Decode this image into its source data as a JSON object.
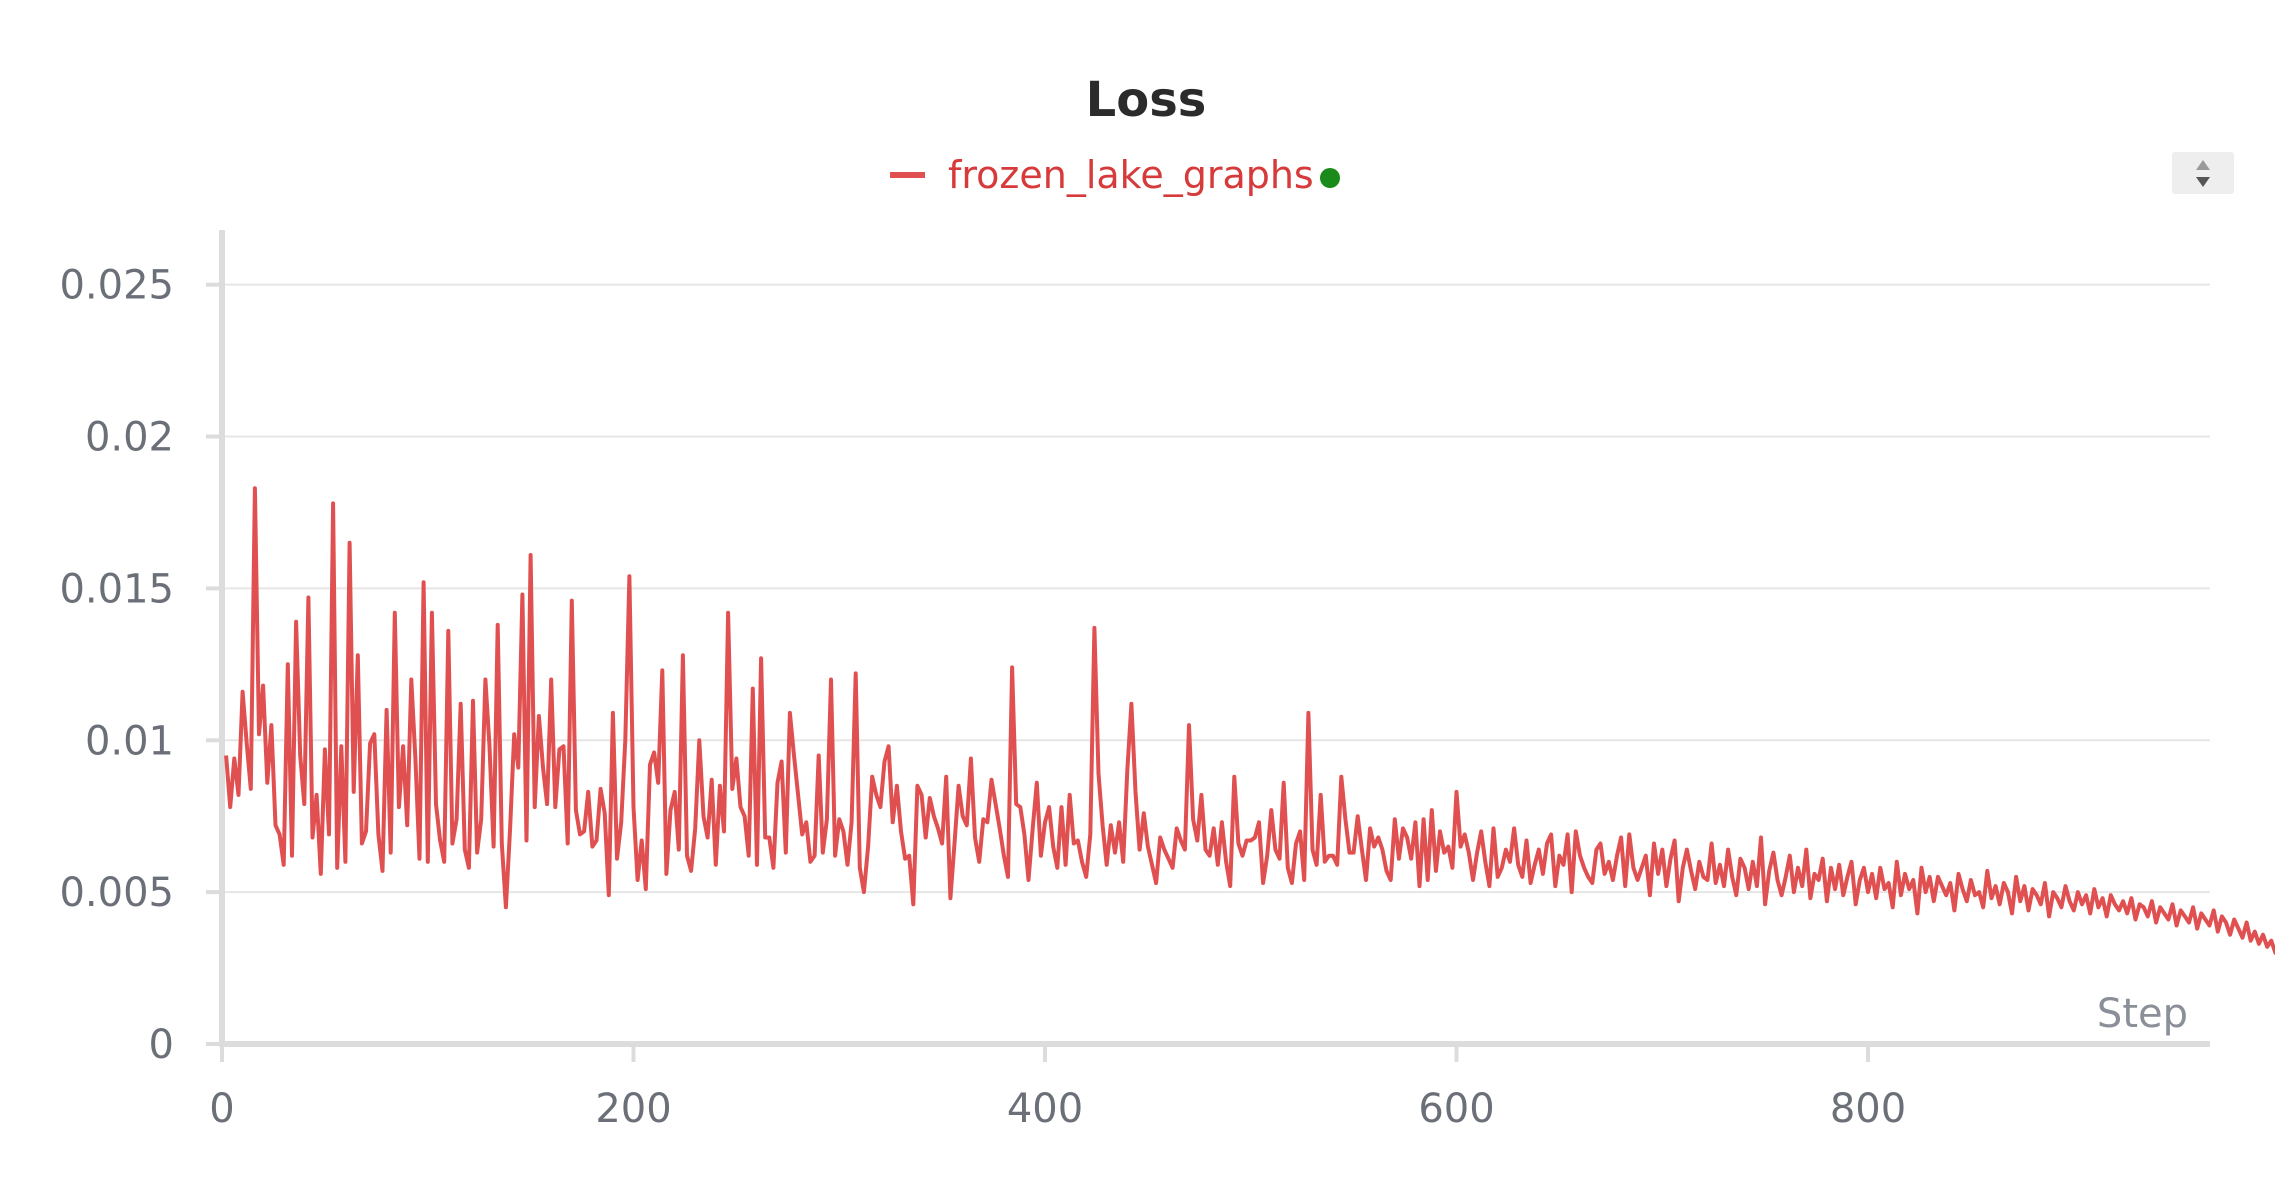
{
  "colors": {
    "series": "#e05050",
    "legend_text": "#d63a3a",
    "status_dot": "#1a8a1a",
    "grid": "#e6e6e6",
    "axis": "#dcdcdc",
    "tick_text": "#6b6f78"
  },
  "legend": {
    "status_icon": "status-dot-icon",
    "scroll_icon": "legend-scroll-icon"
  },
  "chart_data": {
    "type": "line",
    "title": "Loss",
    "xlabel": "Step",
    "ylabel": "",
    "grid": true,
    "legend_position": "top-center",
    "xlim": [
      0,
      975
    ],
    "ylim": [
      0,
      0.0268
    ],
    "x_ticks": [
      0,
      200,
      400,
      600,
      800
    ],
    "x_tick_labels": [
      "0",
      "200",
      "400",
      "600",
      "800"
    ],
    "y_ticks": [
      0,
      0.005,
      0.01,
      0.015,
      0.02,
      0.025
    ],
    "y_tick_labels": [
      "0",
      "0.005",
      "0.01",
      "0.015",
      "0.02",
      "0.025"
    ],
    "series": [
      {
        "name": "frozen_lake_graphs",
        "color": "#e05050",
        "x_start": 2,
        "x_step": 2,
        "values": [
          0.0095,
          0.0078,
          0.0094,
          0.0082,
          0.0116,
          0.0099,
          0.0084,
          0.0183,
          0.0102,
          0.0118,
          0.0086,
          0.0105,
          0.0072,
          0.0069,
          0.0059,
          0.0125,
          0.0062,
          0.0139,
          0.0095,
          0.0079,
          0.0147,
          0.0068,
          0.0082,
          0.0056,
          0.0097,
          0.0069,
          0.0178,
          0.0058,
          0.0098,
          0.006,
          0.0165,
          0.0083,
          0.0128,
          0.0066,
          0.007,
          0.0099,
          0.0102,
          0.0069,
          0.0057,
          0.011,
          0.0063,
          0.0142,
          0.0078,
          0.0098,
          0.0072,
          0.012,
          0.0094,
          0.0061,
          0.0152,
          0.006,
          0.0142,
          0.0079,
          0.0067,
          0.006,
          0.0136,
          0.0066,
          0.0074,
          0.0112,
          0.0064,
          0.0058,
          0.0113,
          0.0063,
          0.0074,
          0.012,
          0.0098,
          0.0065,
          0.0138,
          0.0066,
          0.0045,
          0.0071,
          0.0102,
          0.0091,
          0.0148,
          0.0067,
          0.0161,
          0.0078,
          0.0108,
          0.0091,
          0.0079,
          0.012,
          0.0078,
          0.0097,
          0.0098,
          0.0066,
          0.0146,
          0.0077,
          0.0069,
          0.007,
          0.0083,
          0.0065,
          0.0067,
          0.0084,
          0.0076,
          0.0049,
          0.0109,
          0.0061,
          0.0073,
          0.01,
          0.0154,
          0.0078,
          0.0054,
          0.0067,
          0.0051,
          0.0092,
          0.0096,
          0.0086,
          0.0123,
          0.0056,
          0.0077,
          0.0083,
          0.0064,
          0.0128,
          0.0062,
          0.0057,
          0.0071,
          0.01,
          0.0075,
          0.0068,
          0.0087,
          0.0059,
          0.0085,
          0.007,
          0.0142,
          0.0084,
          0.0094,
          0.0078,
          0.0075,
          0.0062,
          0.0117,
          0.0059,
          0.0127,
          0.0068,
          0.0068,
          0.0058,
          0.0086,
          0.0093,
          0.0063,
          0.0109,
          0.0095,
          0.0082,
          0.0069,
          0.0073,
          0.006,
          0.0062,
          0.0095,
          0.0063,
          0.0074,
          0.012,
          0.0062,
          0.0074,
          0.007,
          0.0059,
          0.0073,
          0.0122,
          0.0058,
          0.005,
          0.0065,
          0.0088,
          0.0082,
          0.0078,
          0.0093,
          0.0098,
          0.0073,
          0.0085,
          0.007,
          0.0061,
          0.0062,
          0.0046,
          0.0085,
          0.0082,
          0.0068,
          0.0081,
          0.0075,
          0.0071,
          0.0066,
          0.0088,
          0.0048,
          0.0066,
          0.0085,
          0.0075,
          0.0072,
          0.0094,
          0.0068,
          0.006,
          0.0074,
          0.0073,
          0.0087,
          0.0079,
          0.0071,
          0.0062,
          0.0055,
          0.0124,
          0.0079,
          0.0078,
          0.0069,
          0.0054,
          0.0071,
          0.0086,
          0.0062,
          0.0073,
          0.0078,
          0.0065,
          0.0058,
          0.0078,
          0.0059,
          0.0082,
          0.0066,
          0.0067,
          0.006,
          0.0055,
          0.0069,
          0.0137,
          0.0089,
          0.0072,
          0.0059,
          0.0072,
          0.0063,
          0.0073,
          0.006,
          0.009,
          0.0112,
          0.0083,
          0.0064,
          0.0076,
          0.0065,
          0.0059,
          0.0053,
          0.0068,
          0.0064,
          0.0061,
          0.0058,
          0.0071,
          0.0067,
          0.0064,
          0.0105,
          0.0074,
          0.0067,
          0.0082,
          0.0064,
          0.0062,
          0.0071,
          0.0059,
          0.0073,
          0.006,
          0.0052,
          0.0088,
          0.0066,
          0.0062,
          0.0067,
          0.0067,
          0.0068,
          0.0073,
          0.0053,
          0.0062,
          0.0077,
          0.0064,
          0.0061,
          0.0086,
          0.0058,
          0.0053,
          0.0066,
          0.007,
          0.0054,
          0.0109,
          0.0064,
          0.0059,
          0.0082,
          0.006,
          0.0062,
          0.0062,
          0.0059,
          0.0088,
          0.0074,
          0.0063,
          0.0063,
          0.0075,
          0.0064,
          0.0054,
          0.0071,
          0.0065,
          0.0068,
          0.0064,
          0.0057,
          0.0054,
          0.0074,
          0.0061,
          0.0071,
          0.0068,
          0.0061,
          0.0073,
          0.0052,
          0.0074,
          0.0054,
          0.0077,
          0.0057,
          0.007,
          0.0063,
          0.0065,
          0.0058,
          0.0083,
          0.0065,
          0.0069,
          0.0063,
          0.0054,
          0.0063,
          0.007,
          0.006,
          0.0052,
          0.0071,
          0.0055,
          0.0058,
          0.0064,
          0.006,
          0.0071,
          0.0059,
          0.0055,
          0.0067,
          0.0053,
          0.0059,
          0.0064,
          0.0056,
          0.0066,
          0.0069,
          0.0052,
          0.0062,
          0.0059,
          0.0069,
          0.005,
          0.007,
          0.0062,
          0.0058,
          0.0055,
          0.0053,
          0.0064,
          0.0066,
          0.0056,
          0.006,
          0.0054,
          0.0062,
          0.0068,
          0.0052,
          0.0069,
          0.0058,
          0.0054,
          0.0058,
          0.0062,
          0.0049,
          0.0066,
          0.0056,
          0.0064,
          0.0052,
          0.0061,
          0.0067,
          0.0047,
          0.0058,
          0.0064,
          0.0057,
          0.0051,
          0.006,
          0.0055,
          0.0054,
          0.0066,
          0.0053,
          0.0059,
          0.0052,
          0.0064,
          0.0055,
          0.0049,
          0.0061,
          0.0058,
          0.0051,
          0.006,
          0.0052,
          0.0068,
          0.0046,
          0.0057,
          0.0063,
          0.0054,
          0.0049,
          0.0055,
          0.0062,
          0.005,
          0.0058,
          0.0052,
          0.0064,
          0.0048,
          0.0056,
          0.0054,
          0.0061,
          0.0047,
          0.0058,
          0.0051,
          0.0059,
          0.0049,
          0.0055,
          0.006,
          0.0046,
          0.0054,
          0.0058,
          0.005,
          0.0056,
          0.0048,
          0.0058,
          0.0051,
          0.0053,
          0.0045,
          0.006,
          0.0049,
          0.0056,
          0.0051,
          0.0054,
          0.0043,
          0.0058,
          0.005,
          0.0055,
          0.0047,
          0.0055,
          0.0052,
          0.0049,
          0.0053,
          0.0044,
          0.0056,
          0.0051,
          0.0047,
          0.0054,
          0.0049,
          0.005,
          0.0045,
          0.0057,
          0.0048,
          0.0052,
          0.0046,
          0.0053,
          0.005,
          0.0043,
          0.0055,
          0.0047,
          0.0052,
          0.0044,
          0.0051,
          0.0049,
          0.0046,
          0.0053,
          0.0042,
          0.005,
          0.0048,
          0.0045,
          0.0052,
          0.0047,
          0.0044,
          0.005,
          0.0046,
          0.0049,
          0.0043,
          0.0051,
          0.0045,
          0.0048,
          0.0042,
          0.0049,
          0.0046,
          0.0044,
          0.0047,
          0.0043,
          0.0048,
          0.0041,
          0.0046,
          0.0045,
          0.0042,
          0.0047,
          0.004,
          0.0045,
          0.0043,
          0.0041,
          0.0046,
          0.0039,
          0.0044,
          0.0042,
          0.004,
          0.0045,
          0.0038,
          0.0043,
          0.0041,
          0.0039,
          0.0044,
          0.0037,
          0.0042,
          0.004,
          0.0036,
          0.0041,
          0.0038,
          0.0035,
          0.004,
          0.0034,
          0.0037,
          0.0033,
          0.0036,
          0.0032,
          0.0034,
          0.003,
          0.0033,
          0.0029,
          0.0031,
          0.0028,
          0.003,
          0.0026,
          0.0029,
          0.0025,
          0.0027,
          0.0024,
          0.0026,
          0.0023,
          0.0024,
          0.0022,
          0.0023,
          0.0021,
          0.0022,
          0.002,
          0.0021,
          0.0019,
          0.002,
          0.0018,
          0.0019,
          0.0017,
          0.0018,
          0.0016,
          0.0017,
          0.0015,
          0.0016,
          0.0014,
          0.0015,
          0.0013,
          0.0014,
          0.0012,
          0.0013,
          0.0011,
          0.0012,
          0.001,
          0.0011,
          0.0009,
          0.001,
          0.0008,
          0.0009,
          0.0007,
          0.0008,
          0.0006,
          0.0007,
          0.0005,
          0.0006,
          0.0004,
          0.0005,
          0.0004,
          0.0003
        ]
      }
    ]
  }
}
